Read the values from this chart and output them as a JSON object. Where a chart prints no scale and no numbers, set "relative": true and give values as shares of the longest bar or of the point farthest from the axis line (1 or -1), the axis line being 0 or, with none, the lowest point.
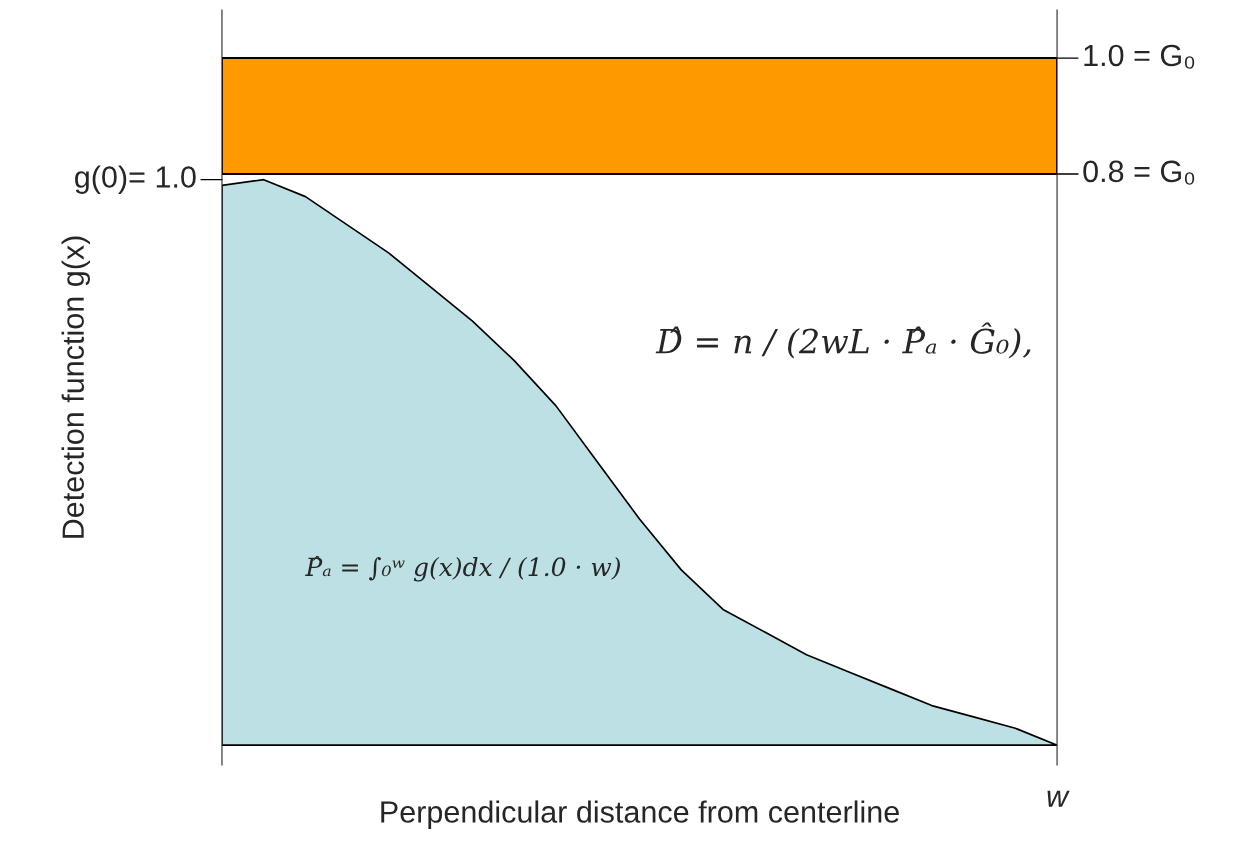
{
  "chart_data": {
    "type": "area",
    "relative": true,
    "xlabel": "Perpendicular distance from centerline",
    "ylabel": "Detection function g(x)",
    "categories": [
      null,
      null,
      null,
      null,
      null,
      null,
      null,
      null,
      null,
      null,
      null,
      null,
      null,
      null,
      null,
      null,
      null,
      null,
      null,
      null,
      null
    ],
    "series": [
      {
        "color": "#bce0e3",
        "values": [
          0.99,
          1.0,
          0.97,
          0.92,
          0.87,
          0.81,
          0.75,
          0.68,
          0.6,
          0.5,
          0.4,
          0.31,
          0.24,
          0.2,
          0.16,
          0.13,
          0.1,
          0.07,
          0.05,
          0.03,
          0.0
        ]
      }
    ],
    "annotations": [
      "D̂ = n / (2wL · P̂ₐ · Ĝ₀),",
      "P̂ₐ = ∫₀ʷ g(x)dx / (1.0 · w)",
      "g(0)= 1.0",
      "w",
      "1.0 = G₀",
      "0.8 = G₀"
    ],
    "grid": false,
    "legend": false
  }
}
